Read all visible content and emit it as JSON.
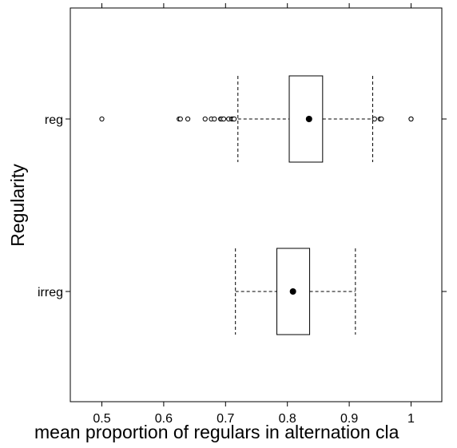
{
  "chart_data": {
    "type": "boxplot",
    "orientation": "horizontal",
    "xlabel": "mean proportion of regulars in alternation cla",
    "ylabel": "Regularity",
    "xlim": [
      0.45,
      1.05
    ],
    "xticks": [
      0.5,
      0.6,
      0.7,
      0.8,
      0.9,
      1.0
    ],
    "xtick_labels": [
      "0.5",
      "0.6",
      "0.7",
      "0.8",
      "0.9",
      "1"
    ],
    "grid": false,
    "categories": [
      "reg",
      "irreg"
    ],
    "boxes": [
      {
        "category": "reg",
        "whisker_low": 0.72,
        "q1": 0.803,
        "median": 0.835,
        "q3": 0.857,
        "whisker_high": 0.938,
        "outliers": [
          0.5,
          0.625,
          0.627,
          0.639,
          0.667,
          0.677,
          0.682,
          0.692,
          0.694,
          0.697,
          0.705,
          0.71,
          0.712,
          0.714,
          0.941,
          0.95,
          0.952,
          1.0,
          1.0
        ]
      },
      {
        "category": "irreg",
        "whisker_low": 0.716,
        "q1": 0.783,
        "median": 0.809,
        "q3": 0.836,
        "whisker_high": 0.91,
        "outliers": []
      }
    ]
  }
}
